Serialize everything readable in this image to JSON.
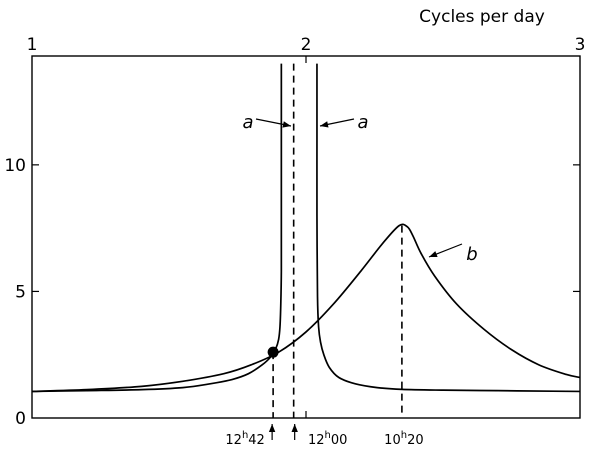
{
  "chart_data": {
    "type": "line",
    "title": "",
    "xlabel": "Cycles per day",
    "ylabel": "",
    "xlim": [
      1,
      3
    ],
    "ylim": [
      0,
      14.3
    ],
    "x_ticks": [
      1,
      2,
      3
    ],
    "x_tick_labels": [
      "1",
      "2",
      "3"
    ],
    "y_ticks": [
      0,
      5,
      10
    ],
    "y_tick_labels": [
      "0",
      "5",
      "10"
    ],
    "grid": false,
    "legend": "none",
    "series": [
      {
        "id": "a_left",
        "x": [
          1.0,
          1.2,
          1.4,
          1.55,
          1.65,
          1.73,
          1.79,
          1.84,
          1.87,
          1.89,
          1.9,
          1.905,
          1.908,
          1.91,
          1.91,
          1.91,
          1.91
        ],
        "y": [
          1.05,
          1.08,
          1.12,
          1.2,
          1.35,
          1.52,
          1.75,
          2.1,
          2.4,
          2.75,
          3.1,
          3.6,
          4.5,
          5.8,
          8.0,
          11.5,
          14.0
        ]
      },
      {
        "id": "a_right",
        "x": [
          2.04,
          2.04,
          2.04,
          2.042,
          2.046,
          2.053,
          2.065,
          2.085,
          2.12,
          2.18,
          2.26,
          2.35,
          2.5,
          2.7,
          2.9,
          3.0
        ],
        "y": [
          14.0,
          11.0,
          8.0,
          4.8,
          3.6,
          3.0,
          2.5,
          2.0,
          1.6,
          1.35,
          1.2,
          1.13,
          1.1,
          1.08,
          1.06,
          1.05
        ]
      },
      {
        "id": "b",
        "x": [
          1.0,
          1.2,
          1.4,
          1.55,
          1.7,
          1.8,
          1.9,
          2.0,
          2.1,
          2.2,
          2.28,
          2.34,
          2.37,
          2.39,
          2.42,
          2.47,
          2.55,
          2.65,
          2.75,
          2.85,
          2.95,
          3.0
        ],
        "y": [
          1.05,
          1.12,
          1.25,
          1.45,
          1.75,
          2.1,
          2.6,
          3.4,
          4.5,
          5.8,
          6.9,
          7.6,
          7.55,
          7.2,
          6.5,
          5.6,
          4.5,
          3.5,
          2.7,
          2.1,
          1.72,
          1.6
        ]
      }
    ],
    "marker": {
      "x": 1.88,
      "y": 2.6
    },
    "dashed_lines": [
      1.88,
      1.955,
      2.35
    ],
    "annotations": [
      {
        "id": "a1",
        "text": "a",
        "target_x": 1.91,
        "target_y": 12.4
      },
      {
        "id": "a2",
        "text": "a",
        "target_x": 2.04,
        "target_y": 12.4
      },
      {
        "id": "b1",
        "text": "b",
        "target_x": 2.42,
        "target_y": 6.6
      }
    ],
    "period_labels": [
      {
        "hours": "12",
        "sup": "h",
        "minutes": "42",
        "x": 1.88,
        "arrow": true
      },
      {
        "hours": "12",
        "sup": "h",
        "minutes": "00",
        "x": 1.955,
        "arrow": true
      },
      {
        "hours": "10",
        "sup": "h",
        "minutes": "20",
        "x": 2.35,
        "arrow": false
      }
    ]
  }
}
